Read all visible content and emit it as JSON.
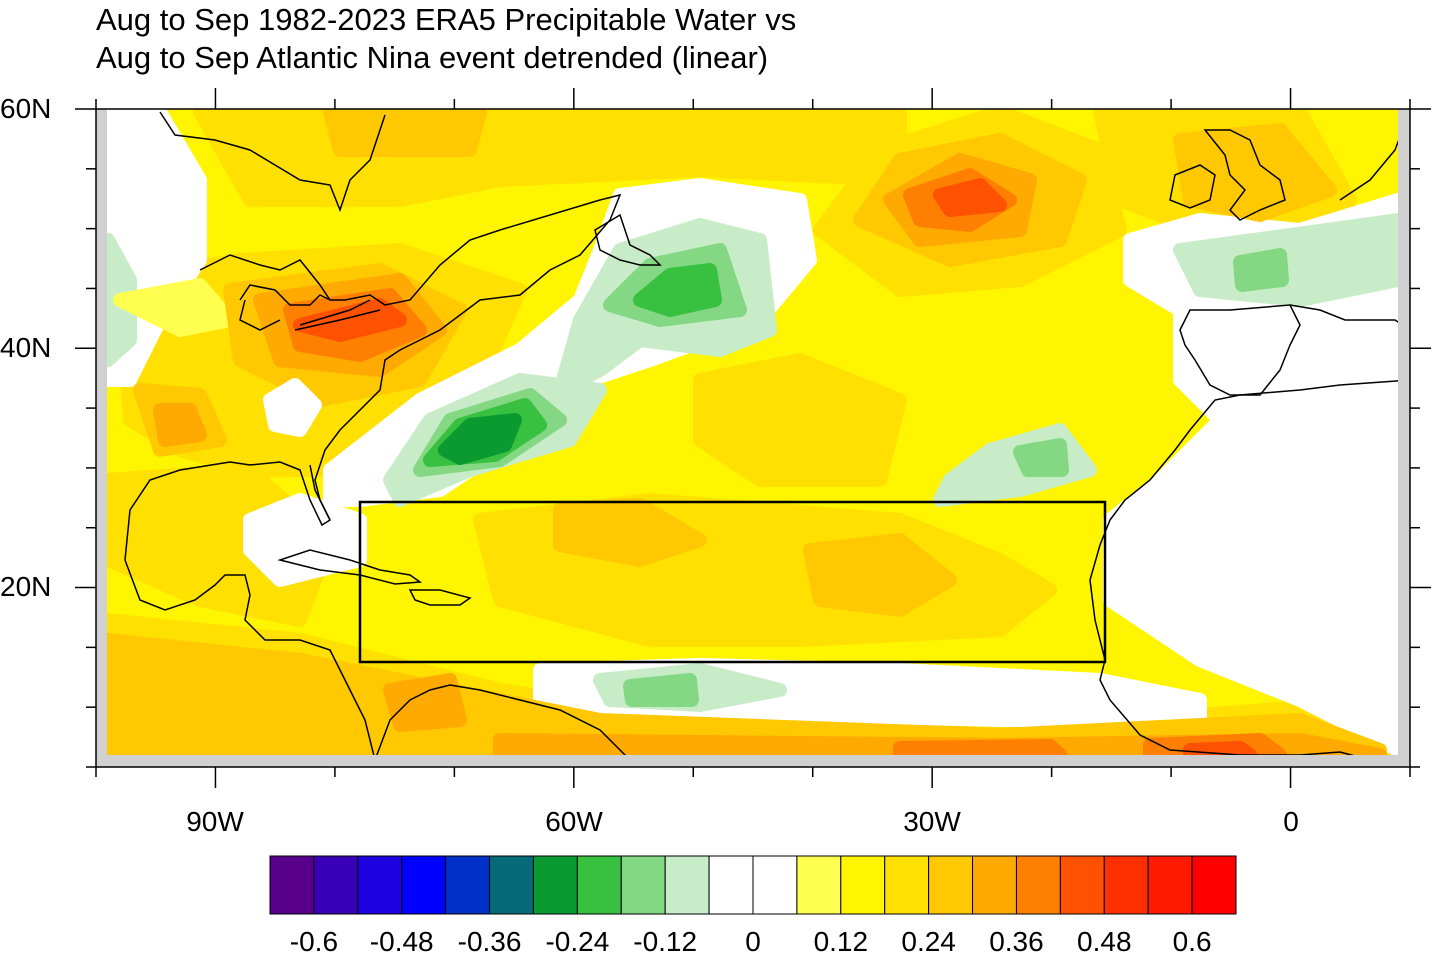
{
  "title": {
    "line1": "Aug to Sep 1982-2023 ERA5 Precipitable Water vs",
    "line2": "Aug to Sep Atlantic Nina event detrended (linear)"
  },
  "map": {
    "lon_range": [
      -100,
      10
    ],
    "lat_range": [
      5,
      60
    ],
    "lat_labels": [
      "60N",
      "40N",
      "20N"
    ],
    "lon_labels": [
      "90W",
      "60W",
      "30W",
      "0"
    ],
    "region_box": {
      "lon": [
        -78,
        -16
      ],
      "lat": [
        14,
        27
      ]
    },
    "field_regions": [
      "positive maximum (0.36-0.48) over Great Lakes / eastern US",
      "positive maximum (0.36-0.48) in NE Atlantic near 25W 52N",
      "negative minimum (-0.24 to -0.12) off SE US coast",
      "negative (-0.12 to -0.24) near 50W 43N",
      "positive 0.12-0.24 across the boxed tropical Atlantic",
      "positive 0.24-0.48 along northern South America / Gulf of Guinea"
    ]
  },
  "colorbar": {
    "labels": [
      "-0.6",
      "-0.48",
      "-0.36",
      "-0.24",
      "-0.12",
      "0",
      "0.12",
      "0.24",
      "0.36",
      "0.48",
      "0.6"
    ],
    "colors": [
      "#58008c",
      "#3a00b8",
      "#1e00e0",
      "#0000ff",
      "#0030c8",
      "#066a78",
      "#0a9a30",
      "#38c040",
      "#84d884",
      "#c8ecc8",
      "#ffffff",
      "#ffffff",
      "#ffff50",
      "#fff500",
      "#ffe000",
      "#ffc800",
      "#ffaa00",
      "#ff8000",
      "#ff5200",
      "#ff3000",
      "#ff1a00",
      "#ff0000"
    ]
  }
}
